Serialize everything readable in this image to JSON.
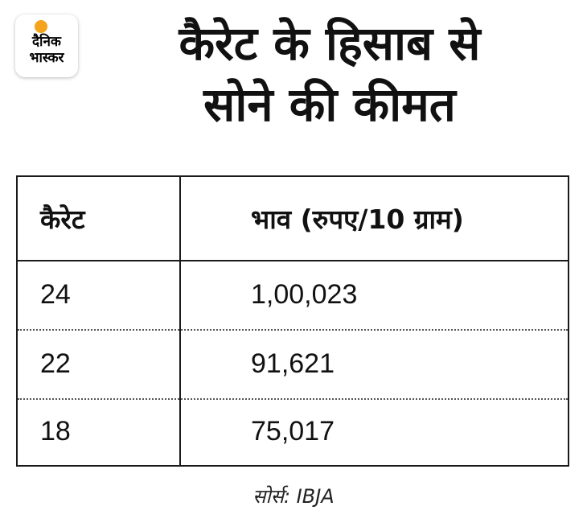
{
  "logo": {
    "line1": "दैनिक",
    "line2": "भास्कर",
    "accent": "#f5a31a"
  },
  "title": {
    "line1": "कैरेट के हिसाब से",
    "line2": "सोने की कीमत"
  },
  "table": {
    "headers": [
      "कैरेट",
      "भाव (रुपए/10 ग्राम)"
    ],
    "rows": [
      [
        "24",
        "1,00,023"
      ],
      [
        "22",
        "91,621"
      ],
      [
        "18",
        "75,017"
      ]
    ]
  },
  "source": "सोर्स: IBJA"
}
